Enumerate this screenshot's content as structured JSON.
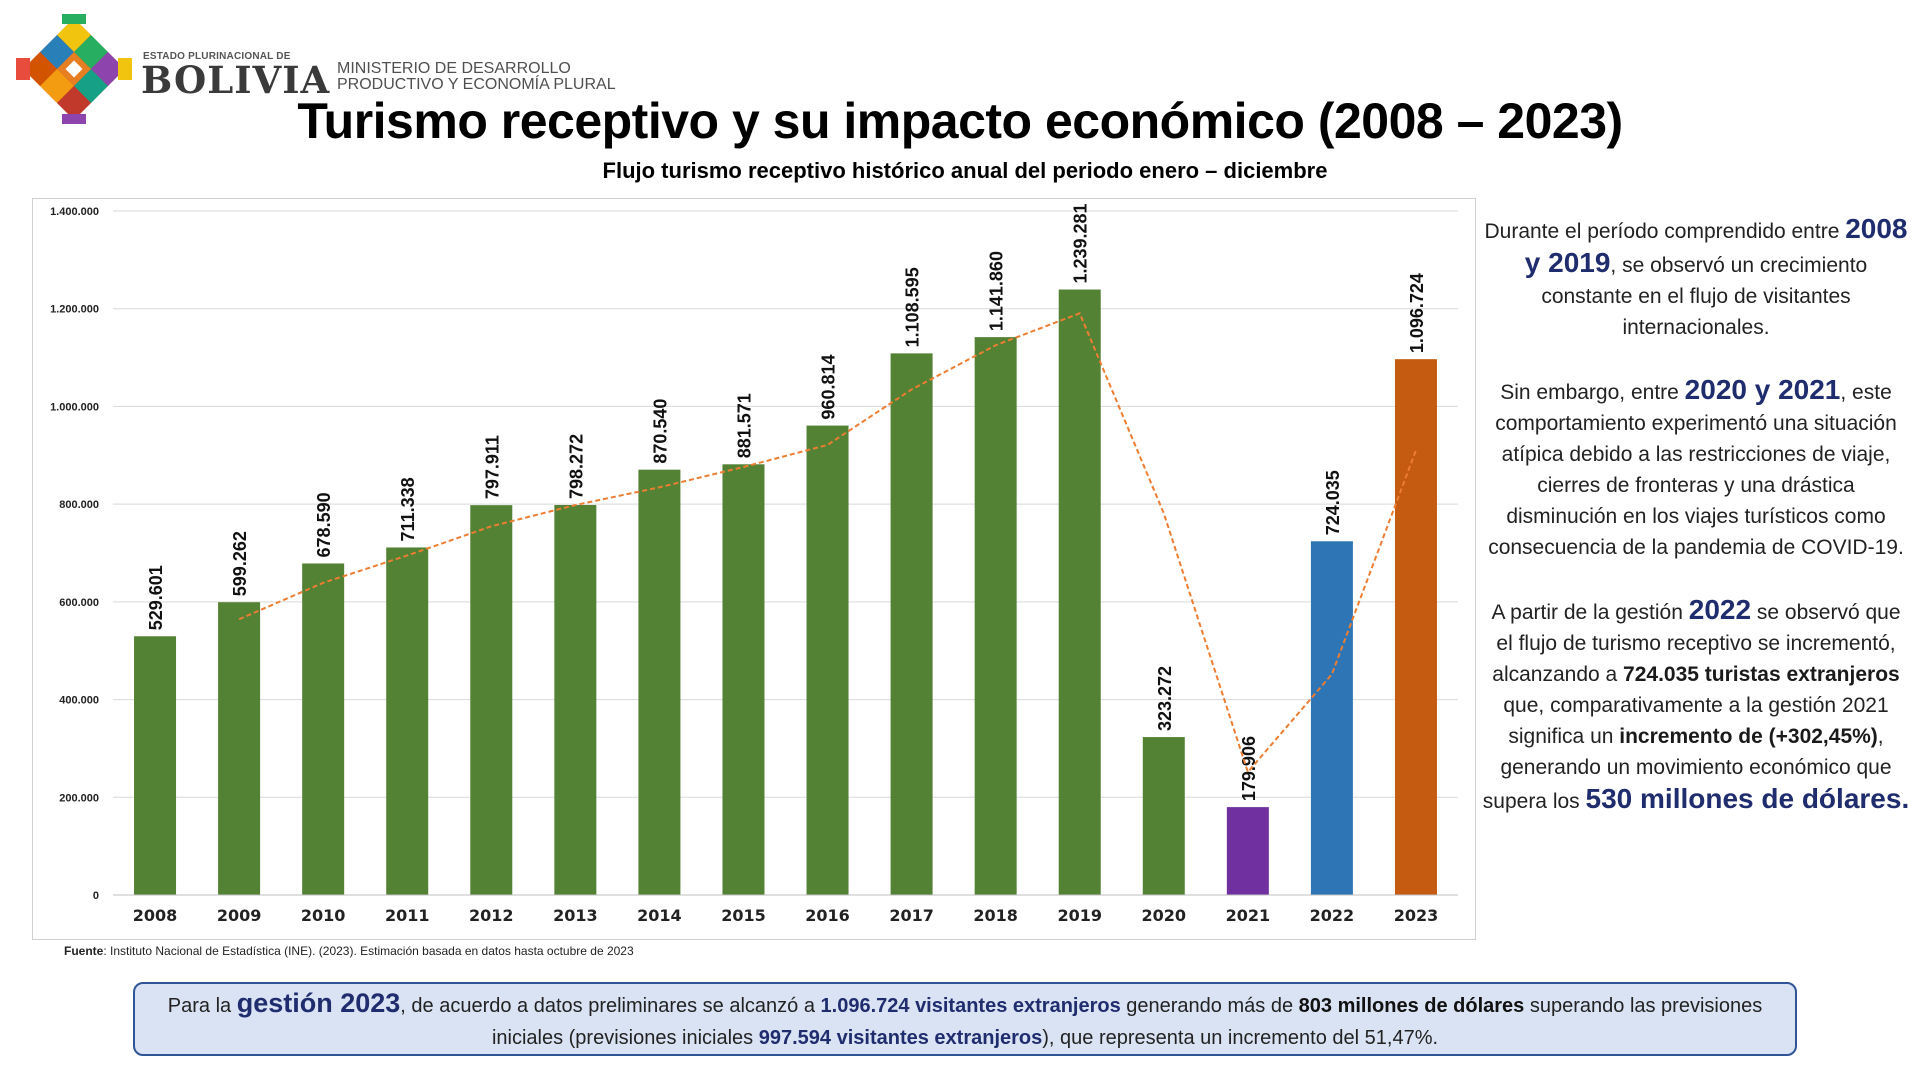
{
  "header": {
    "logo_state_label": "ESTADO PLURINACIONAL DE",
    "logo_country": "BOLIVIA",
    "ministry_line1": "MINISTERIO DE DESARROLLO",
    "ministry_line2": "PRODUCTIVO Y ECONOMÍA PLURAL",
    "title": "Turismo receptivo y su impacto económico (2008 – 2023)",
    "subtitle": "Flujo turismo receptivo histórico anual del periodo enero – diciembre"
  },
  "chart_data": {
    "type": "bar",
    "title": "Flujo turismo receptivo histórico anual del periodo enero – diciembre",
    "xlabel": "",
    "ylabel": "",
    "categories": [
      "2008",
      "2009",
      "2010",
      "2011",
      "2012",
      "2013",
      "2014",
      "2015",
      "2016",
      "2017",
      "2018",
      "2019",
      "2020",
      "2021",
      "2022",
      "2023"
    ],
    "values": [
      529601,
      599262,
      678590,
      711338,
      797911,
      798272,
      870540,
      881571,
      960814,
      1108595,
      1141860,
      1239281,
      323272,
      179906,
      724035,
      1096724
    ],
    "data_labels": [
      "529.601",
      "599.262",
      "678.590",
      "711.338",
      "797.911",
      "798.272",
      "870.540",
      "881.571",
      "960.814",
      "1.108.595",
      "1.141.860",
      "1.239.281",
      "323.272",
      "179.906",
      "724.035",
      "1.096.724"
    ],
    "bar_colors": [
      "#548235",
      "#548235",
      "#548235",
      "#548235",
      "#548235",
      "#548235",
      "#548235",
      "#548235",
      "#548235",
      "#548235",
      "#548235",
      "#548235",
      "#548235",
      "#7030a0",
      "#2e75b6",
      "#c55a11"
    ],
    "trendline": {
      "type": "moving-average",
      "period": 2,
      "color": "#ed7d31",
      "values": [
        564432,
        638926,
        694964,
        754625,
        798092,
        834406,
        876056,
        921193,
        1034705,
        1125228,
        1190571,
        781277,
        251589,
        451971,
        910380
      ]
    },
    "ylim": [
      0,
      1400000
    ],
    "yticks": [
      0,
      200000,
      400000,
      600000,
      800000,
      1000000,
      1200000,
      1400000
    ],
    "ytick_labels": [
      "0",
      "200.000",
      "400.000",
      "600.000",
      "800.000",
      "1.000.000",
      "1.200.000",
      "1.400.000"
    ],
    "grid": true,
    "legend": "none"
  },
  "source_note": {
    "label": "Fuente",
    "text": ": Instituto Nacional de Estadística (INE). (2023). Estimación basada en datos hasta octubre de 2023"
  },
  "side_text": {
    "p1_a": "Durante el período comprendido entre",
    "p1_highlight": "2008 y 2019",
    "p1_b": ", se observó un crecimiento constante en el flujo de visitantes internacionales.",
    "p2_a": "Sin embargo, entre",
    "p2_highlight": "2020 y 2021",
    "p2_b": ", este comportamiento experimentó una situación atípica debido a las restricciones de viaje, cierres de fronteras y una drástica disminución en los viajes turísticos como consecuencia de la pandemia de COVID-19.",
    "p3_a": "A partir de la gestión",
    "p3_highlight": "2022",
    "p3_b": "se observó que el flujo de turismo receptivo se incrementó, alcanzando a",
    "p3_bold1": "724.035 turistas extranjeros",
    "p3_c": "que, comparativamente a la gestión 2021 significa un",
    "p3_bold2": "incremento de (+302,45%)",
    "p3_d": ", generando un movimiento económico que supera los",
    "p3_highlight2": "530 millones de dólares",
    "p3_e": "."
  },
  "bottom_box": {
    "t1": "Para la",
    "t2": "gestión 2023",
    "t3": ", de acuerdo a datos preliminares se alcanzó a",
    "t4": "1.096.724 visitantes extranjeros",
    "t5": "generando más de",
    "t6": "803 millones de dólares",
    "t7": "superando las previsiones iniciales (previsiones iniciales",
    "t8": "997.594 visitantes extranjeros",
    "t9": "), que representa un incremento del 51,47%."
  }
}
